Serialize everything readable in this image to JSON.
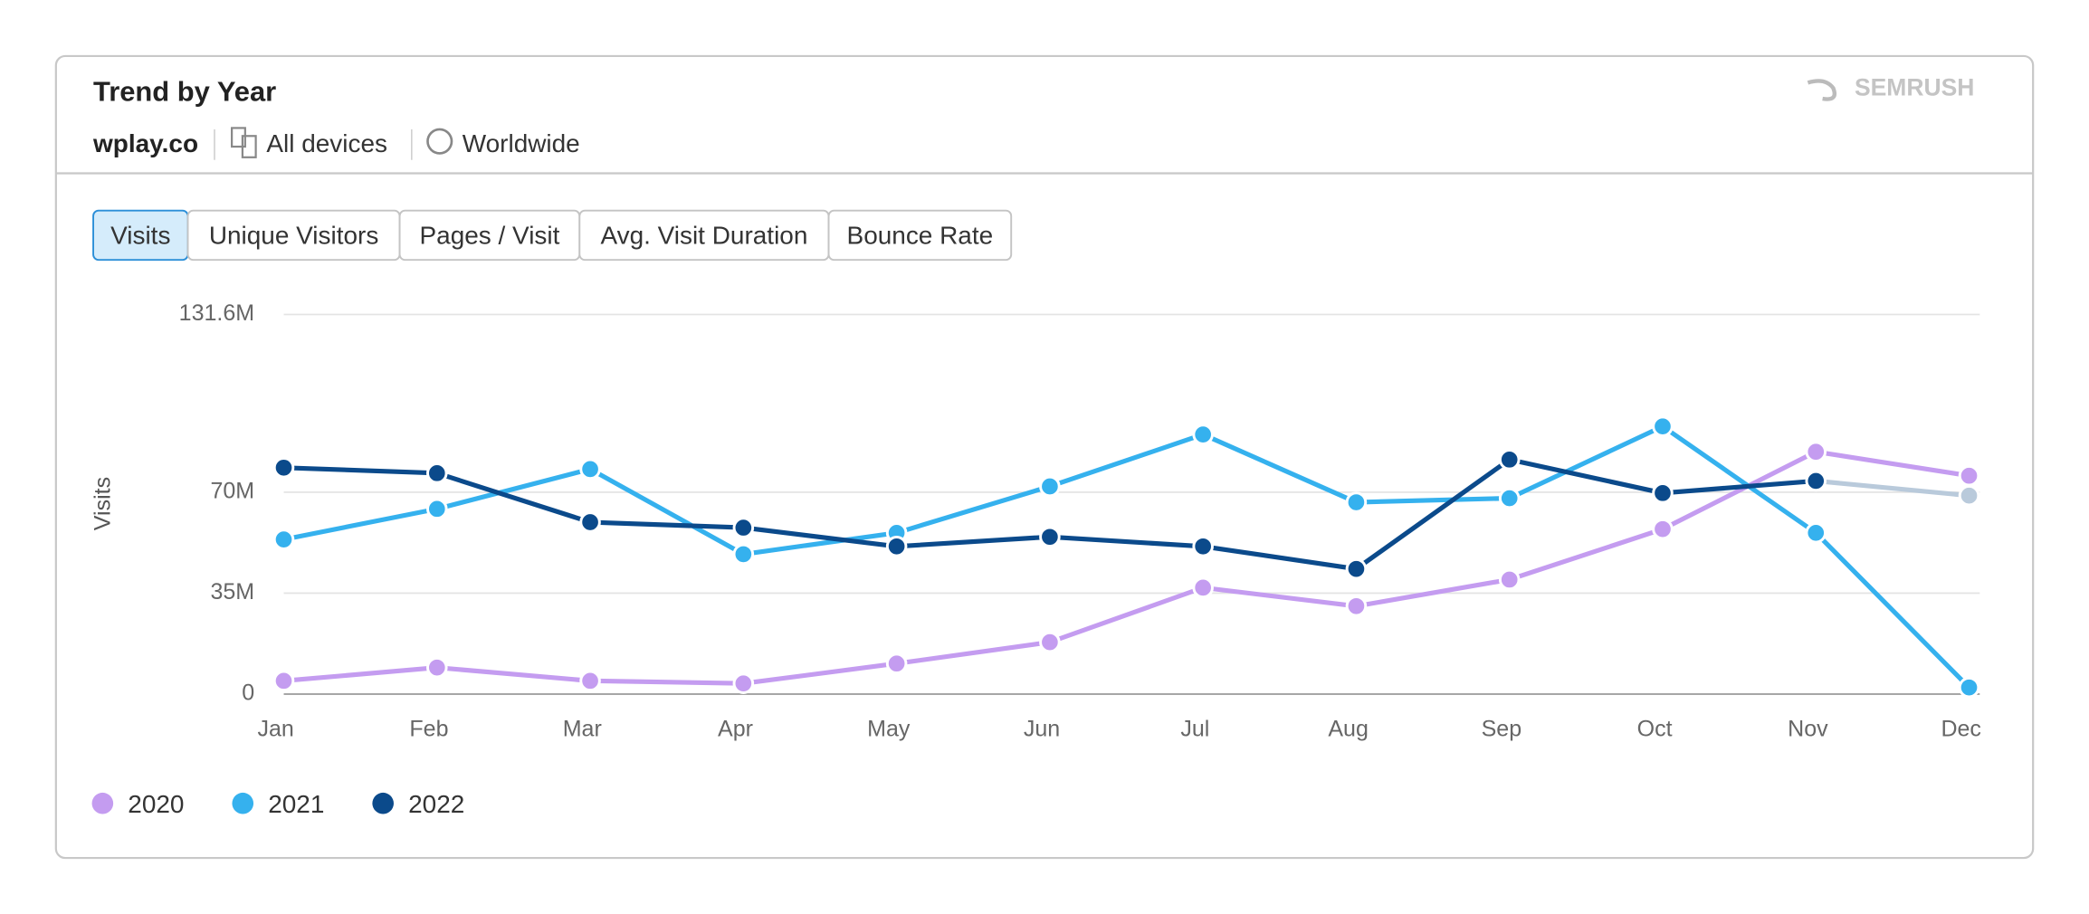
{
  "brand": "SEMRUSH",
  "header": {
    "title": "Trend by Year",
    "domain": "wplay.co",
    "device": "All devices",
    "region": "Worldwide"
  },
  "tabs": {
    "items": [
      "Visits",
      "Unique Visitors",
      "Pages / Visit",
      "Avg. Visit Duration",
      "Bounce Rate"
    ],
    "active": 0
  },
  "chart_data": {
    "type": "line",
    "ylabel": "Visits",
    "categories": [
      "Jan",
      "Feb",
      "Mar",
      "Apr",
      "May",
      "Jun",
      "Jul",
      "Aug",
      "Sep",
      "Oct",
      "Nov",
      "Dec"
    ],
    "ylim": [
      0,
      131600000
    ],
    "yticks": [
      0,
      {
        "value": 35000000,
        "label": "35M"
      },
      {
        "value": 70000000,
        "label": "70M"
      },
      {
        "value": 131600000,
        "label": "131.6M"
      }
    ],
    "grid": true,
    "incomplete_color": "#b9cadb",
    "series": [
      {
        "name": "2020",
        "color": "#c49cf0",
        "values": [
          4600000,
          9200000,
          4600000,
          3700000,
          10600000,
          18000000,
          36900000,
          30500000,
          39700000,
          57200000,
          84000000,
          75700000
        ]
      },
      {
        "name": "2021",
        "color": "#35b1ee",
        "values": [
          53600000,
          64200000,
          78000000,
          48500000,
          55900000,
          72000000,
          90000000,
          66500000,
          67900000,
          92800000,
          55900000,
          2300000
        ]
      },
      {
        "name": "2022",
        "color": "#0b4a8b",
        "values": [
          78500000,
          76600000,
          59600000,
          57700000,
          51200000,
          54500000,
          51200000,
          43400000,
          81300000,
          69700000,
          73900000,
          68800000
        ],
        "incomplete_from": 10
      }
    ]
  }
}
